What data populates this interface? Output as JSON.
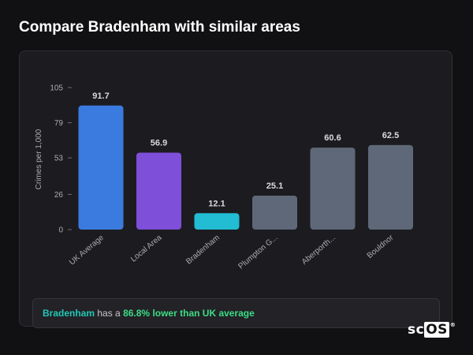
{
  "page": {
    "title": "Compare Bradenham with similar areas"
  },
  "summary": {
    "area": "Bradenham",
    "text_mid": "has a",
    "stat": "86.8% lower than UK average"
  },
  "brand": {
    "sc": "sc",
    "os": "OS",
    "mark": "®"
  },
  "colors": {
    "uk_average": "#3b7bdf",
    "local_area": "#7e4fd9",
    "highlight": "#22bcd3",
    "other": "#5f6878"
  },
  "chart_data": {
    "type": "bar",
    "title": "",
    "xlabel": "",
    "ylabel": "Crimes per 1,000",
    "ylim": [
      0,
      105
    ],
    "yticks": [
      0,
      26,
      53,
      79,
      105
    ],
    "grid": false,
    "categories": [
      "UK Average",
      "Local Area",
      "Bradenham",
      "Plumpton G...",
      "Aberporth...",
      "Bouldnor"
    ],
    "values": [
      91.7,
      56.9,
      12.1,
      25.1,
      60.6,
      62.5
    ],
    "value_labels": [
      "91.7",
      "56.9",
      "12.1",
      "25.1",
      "60.6",
      "62.5"
    ],
    "bar_colors": [
      "#3b7bdf",
      "#7e4fd9",
      "#22bcd3",
      "#5f6878",
      "#5f6878",
      "#5f6878"
    ]
  }
}
